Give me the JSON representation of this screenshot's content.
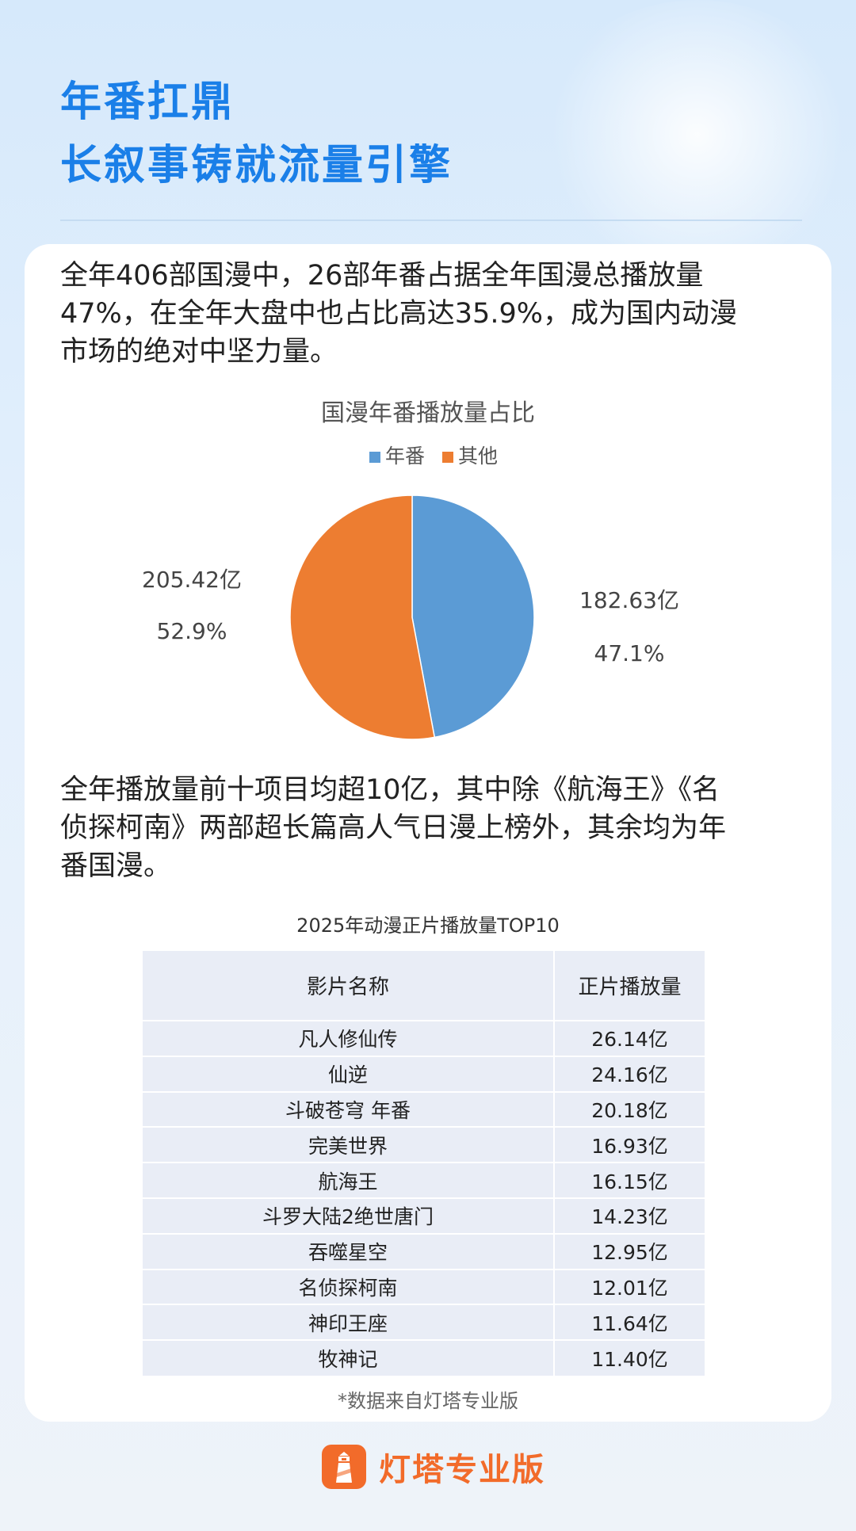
{
  "header": {
    "title_line1": "年番扛鼎",
    "title_line2": "长叙事铸就流量引擎"
  },
  "intro": {
    "lines": [
      "全年406部国漫中，26部年番占据全年国漫总播放量",
      "47%，在全年大盘中也占比高达35.9%，成为国内动漫",
      "市场的绝对中坚力量。"
    ]
  },
  "chart_data": [
    {
      "type": "pie",
      "title": "国漫年番播放量占比",
      "legend_position": "top",
      "slices": [
        {
          "name": "年番",
          "value": 182.63,
          "value_label": "182.63亿",
          "percent": 47.1,
          "percent_label": "47.1%",
          "color": "#5b9bd5"
        },
        {
          "name": "其他",
          "value": 205.42,
          "value_label": "205.42亿",
          "percent": 52.9,
          "percent_label": "52.9%",
          "color": "#ed7d31"
        }
      ]
    },
    {
      "type": "table",
      "title": "2025年动漫正片播放量TOP10",
      "columns": [
        "影片名称",
        "正片播放量"
      ],
      "rows": [
        [
          "凡人修仙传",
          "26.14亿"
        ],
        [
          "仙逆",
          "24.16亿"
        ],
        [
          "斗破苍穹 年番",
          "20.18亿"
        ],
        [
          "完美世界",
          "16.93亿"
        ],
        [
          "航海王",
          "16.15亿"
        ],
        [
          "斗罗大陆2绝世唐门",
          "14.23亿"
        ],
        [
          "吞噬星空",
          "12.95亿"
        ],
        [
          "名侦探柯南",
          "12.01亿"
        ],
        [
          "神印王座",
          "11.64亿"
        ],
        [
          "牧神记",
          "11.40亿"
        ]
      ]
    }
  ],
  "body2": {
    "lines": [
      "全年播放量前十项目均超10亿，其中除《航海王》《名",
      "侦探柯南》两部超长篇高人气日漫上榜外，其余均为年",
      "番国漫。"
    ]
  },
  "footnote": "*数据来自灯塔专业版",
  "brand": {
    "name": "灯塔专业版",
    "color": "#f26b2a",
    "icon": "lighthouse-icon"
  }
}
